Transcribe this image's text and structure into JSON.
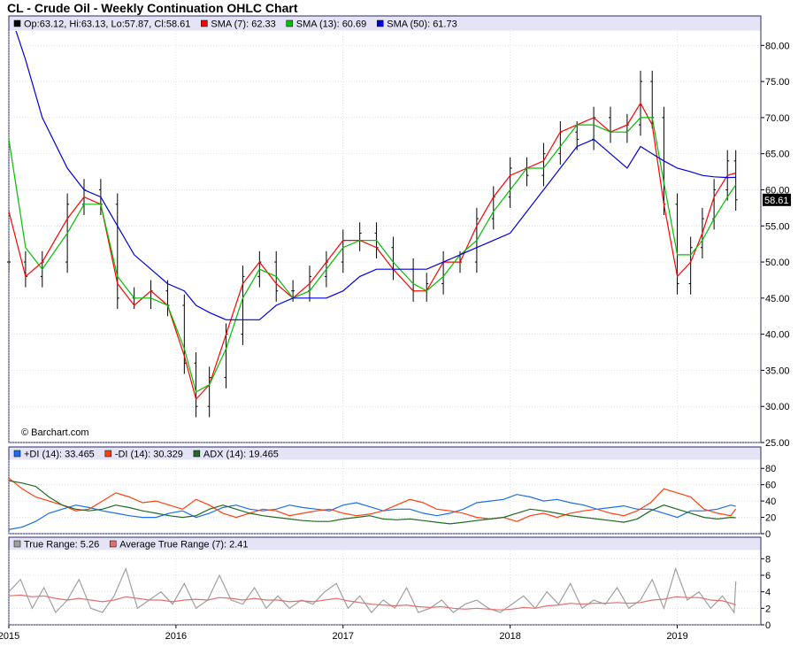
{
  "title": "CL - Crude Oil - Weekly Continuation OHLC Chart",
  "watermark": "© Barchart.com",
  "x_ticks": [
    "2015",
    "2016",
    "2017",
    "2018",
    "2019"
  ],
  "colors": {
    "frame": "#2a2a6a",
    "legend_bg": "#e4e4f6",
    "grid": "#c8c8c8",
    "ohlc": "#000000",
    "sma7": "#ff0000",
    "sma13": "#00c000",
    "sma50": "#0000e0",
    "plus_di": "#1a6ee8",
    "minus_di": "#ff4010",
    "adx": "#206a20",
    "tr": "#a0a0a0",
    "atr": "#e07070"
  },
  "chart_data": [
    {
      "type": "line",
      "panel": "price",
      "legend": [
        {
          "label": "Op:63.12, Hi:63.13, Lo:57.87, Cl:58.61",
          "color": "#000000"
        },
        {
          "label": "SMA (7): 62.33",
          "color": "#ff0000"
        },
        {
          "label": "SMA (13): 60.69",
          "color": "#00c000"
        },
        {
          "label": "SMA (50): 61.73",
          "color": "#0000e0"
        }
      ],
      "last_price": "58.61",
      "last_value": 58.61,
      "ylim": [
        25,
        82
      ],
      "yticks": [
        "25.00",
        "30.00",
        "35.00",
        "40.00",
        "45.00",
        "50.00",
        "55.00",
        "60.00",
        "65.00",
        "70.00",
        "75.00",
        "80.00"
      ],
      "x": [
        2015.0,
        2015.1,
        2015.2,
        2015.35,
        2015.45,
        2015.55,
        2015.65,
        2015.75,
        2015.85,
        2015.95,
        2016.05,
        2016.12,
        2016.2,
        2016.3,
        2016.4,
        2016.5,
        2016.6,
        2016.7,
        2016.8,
        2016.9,
        2017.0,
        2017.1,
        2017.2,
        2017.3,
        2017.42,
        2017.5,
        2017.6,
        2017.7,
        2017.8,
        2017.9,
        2018.0,
        2018.1,
        2018.2,
        2018.3,
        2018.4,
        2018.5,
        2018.6,
        2018.7,
        2018.78,
        2018.85,
        2018.92,
        2019.0,
        2019.08,
        2019.15,
        2019.22,
        2019.3,
        2019.35
      ],
      "close": [
        50,
        48,
        50,
        58,
        60,
        58,
        45,
        45,
        46,
        44,
        36,
        30,
        34,
        40,
        48,
        50,
        46,
        46,
        48,
        50,
        53,
        54,
        52,
        49,
        46,
        47,
        50,
        50,
        56,
        59,
        63,
        62,
        65,
        68,
        67,
        70,
        68,
        69,
        75,
        70,
        58,
        47,
        52,
        56,
        60,
        64,
        58.61
      ],
      "series": [
        {
          "name": "SMA (7)",
          "values": [
            57,
            48,
            50,
            56,
            59,
            58,
            47,
            44,
            46,
            44,
            37,
            31,
            33,
            40,
            47,
            50,
            47,
            45,
            47,
            50,
            53,
            53,
            52,
            49,
            46,
            46,
            50,
            50,
            55,
            59,
            62,
            63,
            64,
            68,
            69,
            70,
            68,
            69,
            72,
            69,
            58,
            48,
            50,
            54,
            59,
            62,
            62.33
          ]
        },
        {
          "name": "SMA (13)",
          "values": [
            67,
            52,
            49,
            54,
            58,
            58,
            48,
            45,
            45,
            44,
            38,
            32,
            33,
            38,
            45,
            49,
            48,
            45,
            46,
            49,
            52,
            53,
            53,
            50,
            47,
            46,
            48,
            51,
            53,
            57,
            60,
            63,
            63,
            66,
            69,
            69,
            68,
            68,
            70,
            70,
            61,
            51,
            51,
            53,
            56,
            59,
            60.69
          ]
        },
        {
          "name": "SMA (50)",
          "values": [
            85,
            78,
            70,
            63,
            60,
            59,
            55,
            51,
            49,
            47,
            46,
            44,
            43,
            42,
            42,
            42,
            44,
            45,
            45,
            45,
            46,
            48,
            49,
            49,
            49,
            49,
            50,
            51,
            52,
            53,
            54,
            57,
            60,
            63,
            66,
            67,
            65,
            63,
            66,
            65,
            64,
            63,
            62.5,
            62,
            61.8,
            61.7,
            61.73
          ]
        }
      ]
    },
    {
      "type": "line",
      "panel": "dmi",
      "legend": [
        {
          "label": "+DI (14): 33.465",
          "color": "#1a6ee8"
        },
        {
          "label": "-DI (14): 30.329",
          "color": "#ff4010"
        },
        {
          "label": "ADX (14): 19.465",
          "color": "#206a20"
        }
      ],
      "ylim": [
        0,
        90
      ],
      "yticks": [
        "0",
        "20",
        "40",
        "60",
        "80"
      ],
      "x": [
        2015.0,
        2015.08,
        2015.16,
        2015.24,
        2015.32,
        2015.4,
        2015.48,
        2015.56,
        2015.64,
        2015.72,
        2015.8,
        2015.88,
        2015.96,
        2016.04,
        2016.12,
        2016.2,
        2016.28,
        2016.36,
        2016.44,
        2016.52,
        2016.6,
        2016.68,
        2016.76,
        2016.84,
        2016.92,
        2017.0,
        2017.08,
        2017.16,
        2017.24,
        2017.32,
        2017.4,
        2017.48,
        2017.56,
        2017.64,
        2017.72,
        2017.8,
        2017.88,
        2017.96,
        2018.04,
        2018.12,
        2018.2,
        2018.28,
        2018.36,
        2018.44,
        2018.52,
        2018.6,
        2018.68,
        2018.76,
        2018.84,
        2018.92,
        2019.0,
        2019.08,
        2019.16,
        2019.24,
        2019.32,
        2019.35
      ],
      "series": [
        {
          "name": "+DI (14)",
          "values": [
            5,
            8,
            15,
            25,
            30,
            35,
            32,
            28,
            25,
            22,
            20,
            20,
            25,
            28,
            20,
            25,
            32,
            35,
            30,
            28,
            30,
            35,
            32,
            30,
            28,
            35,
            38,
            33,
            28,
            30,
            30,
            25,
            22,
            25,
            30,
            38,
            40,
            42,
            48,
            45,
            40,
            42,
            38,
            35,
            30,
            32,
            34,
            30,
            30,
            25,
            20,
            28,
            28,
            30,
            35,
            33.465
          ]
        },
        {
          "name": "-DI (14)",
          "values": [
            68,
            55,
            45,
            40,
            35,
            28,
            30,
            40,
            50,
            45,
            38,
            40,
            35,
            30,
            42,
            35,
            25,
            20,
            25,
            30,
            28,
            22,
            25,
            28,
            30,
            25,
            22,
            24,
            28,
            35,
            42,
            38,
            30,
            28,
            25,
            20,
            18,
            20,
            15,
            22,
            25,
            20,
            25,
            28,
            30,
            25,
            22,
            28,
            38,
            55,
            50,
            45,
            30,
            25,
            22,
            30.329
          ]
        },
        {
          "name": "ADX (14)",
          "values": [
            65,
            62,
            58,
            45,
            35,
            30,
            28,
            30,
            35,
            32,
            28,
            25,
            22,
            20,
            22,
            30,
            35,
            30,
            25,
            22,
            20,
            18,
            16,
            15,
            15,
            18,
            20,
            22,
            18,
            17,
            18,
            16,
            14,
            12,
            14,
            16,
            18,
            20,
            25,
            30,
            28,
            25,
            22,
            20,
            18,
            16,
            14,
            18,
            28,
            35,
            30,
            25,
            20,
            18,
            20,
            19.465
          ]
        }
      ]
    },
    {
      "type": "line",
      "panel": "true_range",
      "legend": [
        {
          "label": "True Range: 5.26",
          "color": "#a0a0a0"
        },
        {
          "label": "Average True Range (7): 2.41",
          "color": "#e07070"
        }
      ],
      "ylim": [
        0,
        9
      ],
      "yticks": [
        "0",
        "2",
        "4",
        "6",
        "8"
      ],
      "x": [
        2015.0,
        2015.07,
        2015.14,
        2015.21,
        2015.28,
        2015.35,
        2015.42,
        2015.49,
        2015.56,
        2015.63,
        2015.7,
        2015.77,
        2015.84,
        2015.91,
        2015.98,
        2016.05,
        2016.12,
        2016.19,
        2016.26,
        2016.33,
        2016.4,
        2016.47,
        2016.54,
        2016.61,
        2016.68,
        2016.75,
        2016.82,
        2016.89,
        2016.96,
        2017.03,
        2017.1,
        2017.17,
        2017.24,
        2017.31,
        2017.38,
        2017.45,
        2017.52,
        2017.59,
        2017.66,
        2017.73,
        2017.8,
        2017.87,
        2017.94,
        2018.01,
        2018.08,
        2018.15,
        2018.22,
        2018.29,
        2018.36,
        2018.43,
        2018.5,
        2018.57,
        2018.64,
        2018.71,
        2018.78,
        2018.85,
        2018.92,
        2018.99,
        2019.06,
        2019.13,
        2019.2,
        2019.27,
        2019.34,
        2019.35
      ],
      "series": [
        {
          "name": "True Range",
          "values": [
            4,
            5.5,
            2,
            4.5,
            1.5,
            3,
            5.5,
            2,
            1.5,
            3.5,
            6.8,
            2,
            3,
            4,
            2.5,
            5,
            2,
            3,
            6,
            3,
            2.5,
            4.5,
            2,
            3.5,
            2,
            3,
            2.5,
            4,
            5,
            2,
            3.5,
            1.5,
            3,
            2,
            4.5,
            1.5,
            2,
            3,
            1.5,
            2.5,
            3,
            2,
            1.5,
            2.5,
            3.5,
            2,
            4,
            2.5,
            5,
            2,
            3,
            2.5,
            4.5,
            2,
            3,
            5.5,
            2,
            6.8,
            3,
            4,
            2,
            3.5,
            1.5,
            5.26
          ]
        },
        {
          "name": "Average True Range (7)",
          "values": [
            3.5,
            3.6,
            3.4,
            3.5,
            3.2,
            3,
            3.2,
            3,
            2.8,
            3,
            3.4,
            3.2,
            3,
            3,
            2.8,
            3,
            3.1,
            3,
            3.3,
            3.2,
            3,
            3.2,
            3,
            3,
            2.8,
            2.9,
            2.8,
            3,
            3.2,
            2.9,
            2.7,
            2.5,
            2.4,
            2.3,
            2.4,
            2.2,
            2.1,
            2.2,
            2,
            1.9,
            2,
            1.9,
            1.8,
            1.9,
            2.1,
            2,
            2.3,
            2.4,
            2.6,
            2.5,
            2.6,
            2.6,
            2.7,
            2.6,
            2.7,
            3,
            3.1,
            3.4,
            3.3,
            3.3,
            3,
            2.9,
            2.5,
            2.41
          ]
        }
      ]
    }
  ]
}
